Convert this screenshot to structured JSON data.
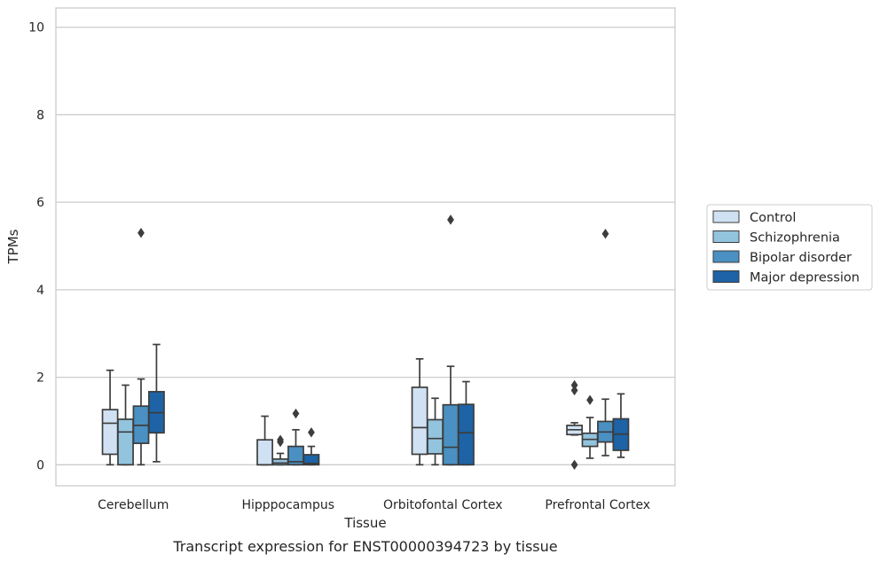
{
  "chart_data": {
    "type": "box",
    "title": "Transcript expression for ENST00000394723 by tissue",
    "xlabel": "Tissue",
    "ylabel": "TPMs",
    "ylim": [
      -0.48,
      10.44
    ],
    "yticks": [
      0,
      2,
      4,
      6,
      8,
      10
    ],
    "grid": "horizontal",
    "legend_position": "right",
    "categories": [
      "Cerebellum",
      "Hipppocampus",
      "Orbitofontal Cortex",
      "Prefrontal Cortex"
    ],
    "series": [
      {
        "name": "Control",
        "color": "#cfe1f2",
        "boxes": [
          {
            "whislo": 0.0,
            "q1": 0.24,
            "med": 0.95,
            "q3": 1.26,
            "whishi": 2.16,
            "fliers": []
          },
          {
            "whislo": 0.0,
            "q1": 0.0,
            "med": 0.0,
            "q3": 0.57,
            "whishi": 1.11,
            "fliers": []
          },
          {
            "whislo": 0.0,
            "q1": 0.24,
            "med": 0.85,
            "q3": 1.77,
            "whishi": 2.42,
            "fliers": []
          },
          {
            "whislo": 0.68,
            "q1": 0.69,
            "med": 0.8,
            "q3": 0.9,
            "whishi": 0.96,
            "fliers": [
              0.0,
              1.7,
              1.82
            ]
          }
        ]
      },
      {
        "name": "Schizophrenia",
        "color": "#93c4de",
        "boxes": [
          {
            "whislo": 0.0,
            "q1": 0.0,
            "med": 0.75,
            "q3": 1.04,
            "whishi": 1.82,
            "fliers": []
          },
          {
            "whislo": 0.0,
            "q1": 0.0,
            "med": 0.04,
            "q3": 0.13,
            "whishi": 0.26,
            "fliers": [
              0.52,
              0.57
            ]
          },
          {
            "whislo": 0.0,
            "q1": 0.25,
            "med": 0.6,
            "q3": 1.03,
            "whishi": 1.52,
            "fliers": []
          },
          {
            "whislo": 0.15,
            "q1": 0.42,
            "med": 0.58,
            "q3": 0.72,
            "whishi": 1.08,
            "fliers": [
              1.48
            ]
          }
        ]
      },
      {
        "name": "Bipolar disorder",
        "color": "#4a90c2",
        "boxes": [
          {
            "whislo": 0.0,
            "q1": 0.49,
            "med": 0.9,
            "q3": 1.34,
            "whishi": 1.96,
            "fliers": [
              5.3
            ]
          },
          {
            "whislo": 0.0,
            "q1": 0.0,
            "med": 0.07,
            "q3": 0.42,
            "whishi": 0.8,
            "fliers": [
              1.17
            ]
          },
          {
            "whislo": 0.0,
            "q1": 0.0,
            "med": 0.4,
            "q3": 1.37,
            "whishi": 2.25,
            "fliers": [
              5.6
            ]
          },
          {
            "whislo": 0.21,
            "q1": 0.52,
            "med": 0.75,
            "q3": 0.99,
            "whishi": 1.5,
            "fliers": [
              5.28
            ]
          }
        ]
      },
      {
        "name": "Major depression",
        "color": "#1d63a6",
        "boxes": [
          {
            "whislo": 0.07,
            "q1": 0.73,
            "med": 1.19,
            "q3": 1.67,
            "whishi": 2.75,
            "fliers": []
          },
          {
            "whislo": 0.0,
            "q1": 0.0,
            "med": 0.03,
            "q3": 0.23,
            "whishi": 0.42,
            "fliers": [
              0.74
            ]
          },
          {
            "whislo": 0.0,
            "q1": 0.0,
            "med": 0.73,
            "q3": 1.38,
            "whishi": 1.9,
            "fliers": []
          },
          {
            "whislo": 0.17,
            "q1": 0.33,
            "med": 0.7,
            "q3": 1.05,
            "whishi": 1.62,
            "fliers": []
          }
        ]
      }
    ]
  }
}
